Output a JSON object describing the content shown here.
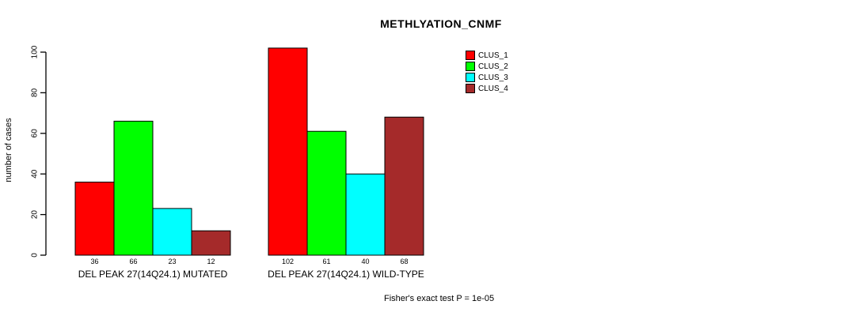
{
  "chart_data": {
    "type": "bar",
    "title": "METHLYATION_CNMF",
    "ylabel": "number of cases",
    "xlabel": "",
    "ylim": [
      0,
      100
    ],
    "yticks": [
      0,
      20,
      40,
      60,
      80,
      100
    ],
    "grid": false,
    "legend_position": "top-right",
    "categories": [
      "DEL PEAK 27(14Q24.1) MUTATED",
      "DEL PEAK 27(14Q24.1) WILD-TYPE"
    ],
    "series": [
      {
        "name": "CLUS_1",
        "color": "#FF0000",
        "values": [
          36,
          102
        ]
      },
      {
        "name": "CLUS_2",
        "color": "#00FF00",
        "values": [
          66,
          61
        ]
      },
      {
        "name": "CLUS_3",
        "color": "#00FFFF",
        "values": [
          23,
          40
        ]
      },
      {
        "name": "CLUS_4",
        "color": "#A52A2A",
        "values": [
          12,
          68
        ]
      }
    ],
    "bar_value_labels": [
      [
        36,
        66,
        23,
        12
      ],
      [
        102,
        61,
        40,
        68
      ]
    ],
    "annotation": "Fisher's exact test P = 1e-05",
    "axis_color": "#000000"
  }
}
